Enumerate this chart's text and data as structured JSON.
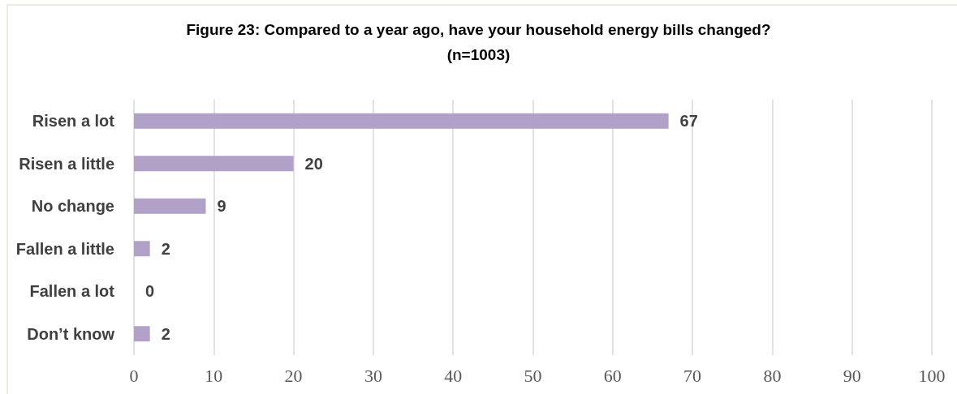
{
  "chart_data": {
    "type": "bar",
    "orientation": "horizontal",
    "title": "Figure 23: Compared to a year ago, have your household energy bills changed?",
    "subtitle": "(n=1003)",
    "categories": [
      "Risen a lot",
      "Risen a little",
      "No change",
      "Fallen a little",
      "Fallen a lot",
      "Don’t know"
    ],
    "values": [
      67,
      20,
      9,
      2,
      0,
      2
    ],
    "color": "#b1a0c7",
    "xlim": [
      0,
      100
    ],
    "xticks": [
      0,
      10,
      20,
      30,
      40,
      50,
      60,
      70,
      80,
      90,
      100
    ],
    "grid": "x",
    "data_labels": true
  }
}
